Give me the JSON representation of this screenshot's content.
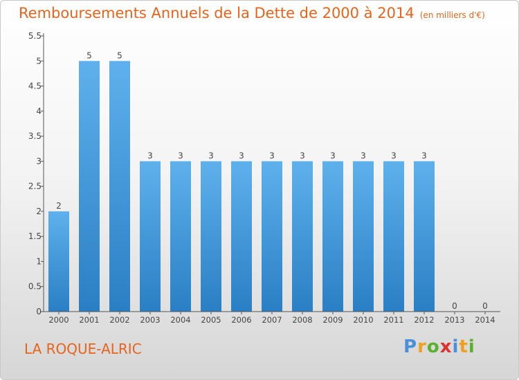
{
  "title": "Remboursements Annuels de la Dette de 2000 à 2014",
  "subtitle": "(en milliers d'€)",
  "commune": "LA ROQUE-ALRIC",
  "logo": {
    "letters": [
      "P",
      "r",
      "o",
      "x",
      "i",
      "t",
      "i"
    ],
    "colors": [
      "#4a90d9",
      "#f0a020",
      "#5cb030",
      "#e03030",
      "#4a90d9",
      "#f0a020",
      "#5cb030"
    ]
  },
  "colors": {
    "bar_top": "#5eb1ec",
    "bar_bottom": "#2a7fc4",
    "axis": "#555555",
    "grid": "#cfcfcf",
    "accent": "#e8631a"
  },
  "chart_data": {
    "type": "bar",
    "title": "Remboursements Annuels de la Dette de 2000 à 2014",
    "subtitle": "(en milliers d'€)",
    "categories": [
      "2000",
      "2001",
      "2002",
      "2003",
      "2004",
      "2005",
      "2006",
      "2007",
      "2008",
      "2009",
      "2010",
      "2011",
      "2012",
      "2013",
      "2014"
    ],
    "values": [
      2,
      5,
      5,
      3,
      3,
      3,
      3,
      3,
      3,
      3,
      3,
      3,
      3,
      0,
      0
    ],
    "data_labels": [
      "2",
      "5",
      "5",
      "3",
      "3",
      "3",
      "3",
      "3",
      "3",
      "3",
      "3",
      "3",
      "3",
      "0",
      "0"
    ],
    "ylim": [
      0,
      5.5
    ],
    "yticks": [
      0,
      0.5,
      1,
      1.5,
      2,
      2.5,
      3,
      3.5,
      4,
      4.5,
      5,
      5.5
    ],
    "ytick_labels": [
      "0",
      "0.5",
      "1",
      "1.5",
      "2",
      "2.5",
      "3",
      "3.5",
      "4",
      "4.5",
      "5",
      "5.5"
    ],
    "xlabel": "",
    "ylabel": "",
    "grid": false,
    "legend": "none"
  }
}
